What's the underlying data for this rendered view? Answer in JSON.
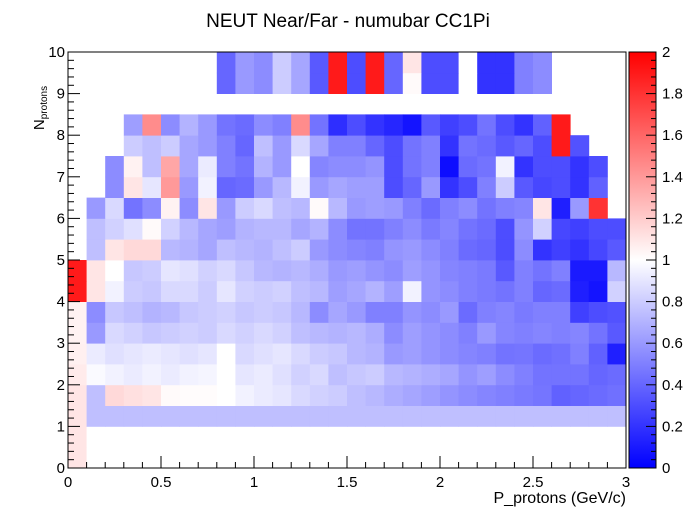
{
  "chart_data": {
    "type": "heatmap",
    "title": "NEUT Near/Far - numubar CC1Pi",
    "xlabel": "P_protons (GeV/c)",
    "ylabel_main": "N",
    "ylabel_sub": "protons",
    "xlim": [
      0,
      3
    ],
    "ylim": [
      0,
      10
    ],
    "zlim": [
      0,
      2
    ],
    "x_bin_width": 0.1,
    "y_bin_width": 0.5,
    "x_ticks": [
      "0",
      "0.5",
      "1",
      "1.5",
      "2",
      "2.5",
      "3"
    ],
    "x_tick_values": [
      0,
      0.5,
      1,
      1.5,
      2,
      2.5,
      3
    ],
    "y_ticks": [
      "0",
      "1",
      "2",
      "3",
      "4",
      "5",
      "6",
      "7",
      "8",
      "9",
      "10"
    ],
    "y_tick_values": [
      0,
      1,
      2,
      3,
      4,
      5,
      6,
      7,
      8,
      9,
      10
    ],
    "z_ticks": [
      "0",
      "0.2",
      "0.4",
      "0.6",
      "0.8",
      "1",
      "1.2",
      "1.4",
      "1.6",
      "1.8",
      "2"
    ],
    "z_tick_values": [
      0,
      0.2,
      0.4,
      0.6,
      0.8,
      1,
      1.2,
      1.4,
      1.6,
      1.8,
      2
    ],
    "colors": {
      "low": "#0000ff",
      "mid": "#ffffff",
      "high": "#ff0000"
    },
    "values": [
      [
        1.1,
        1.0,
        1.0,
        1.0,
        1.0,
        1.0,
        1.0,
        1.0,
        1.0,
        1.0,
        1.0,
        1.0,
        1.0,
        1.0,
        1.0,
        1.0,
        1.0,
        1.0,
        1.0,
        1.0,
        1.0,
        1.0,
        1.0,
        1.0,
        1.0,
        1.0,
        1.0,
        1.0,
        1.0,
        1.0
      ],
      [
        1.1,
        1.0,
        1.0,
        1.0,
        1.0,
        1.0,
        1.0,
        1.0,
        1.0,
        1.0,
        1.0,
        1.0,
        1.0,
        1.0,
        1.0,
        1.0,
        1.0,
        1.0,
        1.0,
        1.0,
        1.0,
        1.0,
        1.0,
        1.0,
        1.0,
        1.0,
        1.0,
        1.0,
        1.0,
        1.0
      ],
      [
        1.1,
        0.75,
        0.75,
        0.75,
        0.75,
        0.75,
        0.75,
        0.75,
        0.75,
        0.75,
        0.75,
        0.75,
        0.75,
        0.75,
        0.75,
        0.75,
        0.75,
        0.75,
        0.75,
        0.75,
        0.75,
        0.75,
        0.75,
        0.75,
        0.75,
        0.75,
        0.75,
        0.75,
        0.75,
        0.75
      ],
      [
        1.1,
        0.75,
        1.15,
        1.12,
        1.1,
        1.02,
        1.01,
        1.01,
        1.0,
        0.95,
        0.92,
        0.9,
        0.85,
        0.82,
        0.8,
        0.75,
        0.72,
        0.68,
        0.65,
        0.62,
        0.58,
        0.55,
        0.52,
        0.5,
        0.48,
        0.46,
        0.38,
        0.4,
        0.42,
        0.44
      ],
      [
        1.08,
        0.98,
        0.95,
        0.92,
        0.95,
        0.92,
        0.95,
        0.96,
        1.0,
        0.9,
        0.92,
        0.88,
        0.82,
        0.85,
        0.75,
        0.78,
        0.8,
        0.72,
        0.7,
        0.68,
        0.65,
        0.58,
        0.62,
        0.55,
        0.5,
        0.45,
        0.45,
        0.45,
        0.4,
        0.42
      ],
      [
        1.06,
        0.92,
        0.88,
        0.9,
        0.92,
        0.9,
        0.88,
        0.9,
        1.0,
        0.85,
        0.88,
        0.9,
        0.85,
        0.8,
        0.78,
        0.72,
        0.7,
        0.6,
        0.62,
        0.58,
        0.55,
        0.52,
        0.5,
        0.45,
        0.46,
        0.42,
        0.44,
        0.5,
        0.38,
        0.12
      ],
      [
        1.05,
        0.6,
        0.85,
        0.82,
        0.78,
        0.8,
        0.82,
        0.8,
        0.85,
        0.82,
        0.85,
        0.82,
        0.75,
        0.72,
        0.7,
        0.72,
        0.68,
        0.55,
        0.62,
        0.58,
        0.55,
        0.5,
        0.6,
        0.52,
        0.5,
        0.52,
        0.5,
        0.52,
        0.45,
        0.35
      ],
      [
        1.05,
        0.55,
        0.78,
        0.75,
        0.7,
        0.72,
        0.78,
        0.8,
        0.82,
        0.78,
        0.8,
        0.78,
        0.72,
        0.55,
        0.65,
        0.6,
        0.5,
        0.5,
        0.58,
        0.55,
        0.6,
        0.42,
        0.5,
        0.52,
        0.48,
        0.5,
        0.5,
        0.25,
        0.3,
        0.32
      ],
      [
        1.9,
        1.1,
        0.95,
        0.8,
        0.78,
        0.85,
        0.85,
        0.8,
        0.9,
        0.82,
        0.8,
        0.82,
        0.75,
        0.72,
        0.62,
        0.65,
        0.7,
        0.62,
        0.95,
        0.58,
        0.55,
        0.5,
        0.48,
        0.45,
        0.5,
        0.4,
        0.42,
        0.12,
        0.08,
        0.82
      ],
      [
        1.9,
        1.1,
        1.0,
        0.78,
        0.8,
        0.9,
        0.88,
        0.82,
        0.85,
        0.78,
        0.72,
        0.7,
        0.72,
        0.68,
        0.6,
        0.62,
        0.58,
        0.55,
        0.62,
        0.58,
        0.52,
        0.5,
        0.48,
        0.35,
        0.5,
        0.45,
        0.5,
        0.1,
        0.1,
        0.72
      ],
      [
        null,
        0.75,
        1.1,
        1.15,
        1.15,
        0.72,
        0.7,
        0.65,
        0.75,
        0.72,
        0.7,
        0.75,
        0.8,
        0.6,
        0.55,
        0.52,
        0.5,
        0.58,
        0.6,
        0.55,
        0.5,
        0.42,
        0.4,
        0.3,
        0.55,
        0.2,
        0.25,
        0.2,
        0.28,
        0.35
      ],
      [
        null,
        0.75,
        0.82,
        0.88,
        1.02,
        0.82,
        0.72,
        0.65,
        0.62,
        0.7,
        0.72,
        0.72,
        0.65,
        0.7,
        0.55,
        0.45,
        0.45,
        0.5,
        0.55,
        0.48,
        0.52,
        0.45,
        0.42,
        0.3,
        0.58,
        0.82,
        0.28,
        0.25,
        0.3,
        0.3
      ],
      [
        null,
        0.6,
        0.85,
        0.45,
        0.55,
        1.05,
        0.55,
        1.1,
        0.6,
        0.8,
        0.85,
        0.75,
        0.72,
        1.02,
        0.72,
        0.6,
        0.62,
        0.6,
        0.5,
        0.42,
        0.5,
        0.55,
        0.45,
        0.5,
        0.52,
        1.1,
        0.12,
        0.6,
        1.8,
        null
      ],
      [
        null,
        null,
        0.55,
        1.1,
        0.9,
        1.4,
        0.6,
        0.95,
        0.4,
        0.42,
        0.6,
        0.72,
        0.95,
        0.6,
        0.65,
        0.62,
        0.62,
        0.3,
        0.4,
        0.6,
        0.2,
        0.3,
        0.5,
        0.8,
        0.35,
        0.28,
        0.3,
        0.2,
        0.38,
        null
      ],
      [
        null,
        null,
        0.55,
        1.05,
        0.75,
        1.35,
        0.65,
        0.92,
        0.5,
        0.45,
        0.7,
        0.6,
        1.0,
        0.52,
        0.55,
        0.55,
        0.58,
        0.3,
        0.45,
        0.5,
        0.05,
        0.42,
        0.45,
        0.95,
        0.2,
        0.3,
        0.3,
        0.2,
        0.3,
        null
      ],
      [
        null,
        null,
        null,
        0.8,
        0.75,
        0.8,
        0.65,
        0.6,
        0.5,
        0.4,
        0.75,
        0.6,
        0.85,
        0.65,
        0.5,
        0.5,
        0.4,
        0.3,
        0.45,
        0.5,
        0.2,
        0.45,
        0.42,
        0.35,
        0.4,
        0.3,
        1.9,
        0.32,
        null,
        null
      ],
      [
        null,
        null,
        null,
        0.62,
        1.45,
        0.55,
        0.7,
        0.6,
        0.45,
        0.42,
        0.55,
        0.5,
        1.45,
        0.45,
        0.18,
        0.3,
        0.2,
        0.15,
        0.08,
        0.35,
        0.25,
        0.3,
        0.45,
        0.3,
        0.2,
        0.38,
        1.9,
        null,
        null,
        null
      ],
      [
        null,
        null,
        null,
        null,
        null,
        null,
        null,
        null,
        null,
        null,
        null,
        null,
        null,
        null,
        null,
        null,
        null,
        null,
        null,
        null,
        null,
        null,
        null,
        null,
        null,
        null,
        null,
        null,
        null,
        null
      ],
      [
        null,
        null,
        null,
        null,
        null,
        null,
        null,
        null,
        0.4,
        0.6,
        0.55,
        0.8,
        0.65,
        0.35,
        1.9,
        0.3,
        1.9,
        0.4,
        1.02,
        0.3,
        0.3,
        1.0,
        0.2,
        0.2,
        0.5,
        0.55,
        null,
        null,
        null,
        null
      ],
      [
        null,
        null,
        null,
        null,
        null,
        null,
        null,
        null,
        0.4,
        0.6,
        0.55,
        0.8,
        0.65,
        0.35,
        1.9,
        0.3,
        1.9,
        0.4,
        1.1,
        0.3,
        0.3,
        1.0,
        0.2,
        0.2,
        0.5,
        0.55,
        null,
        null,
        null,
        null
      ]
    ]
  }
}
